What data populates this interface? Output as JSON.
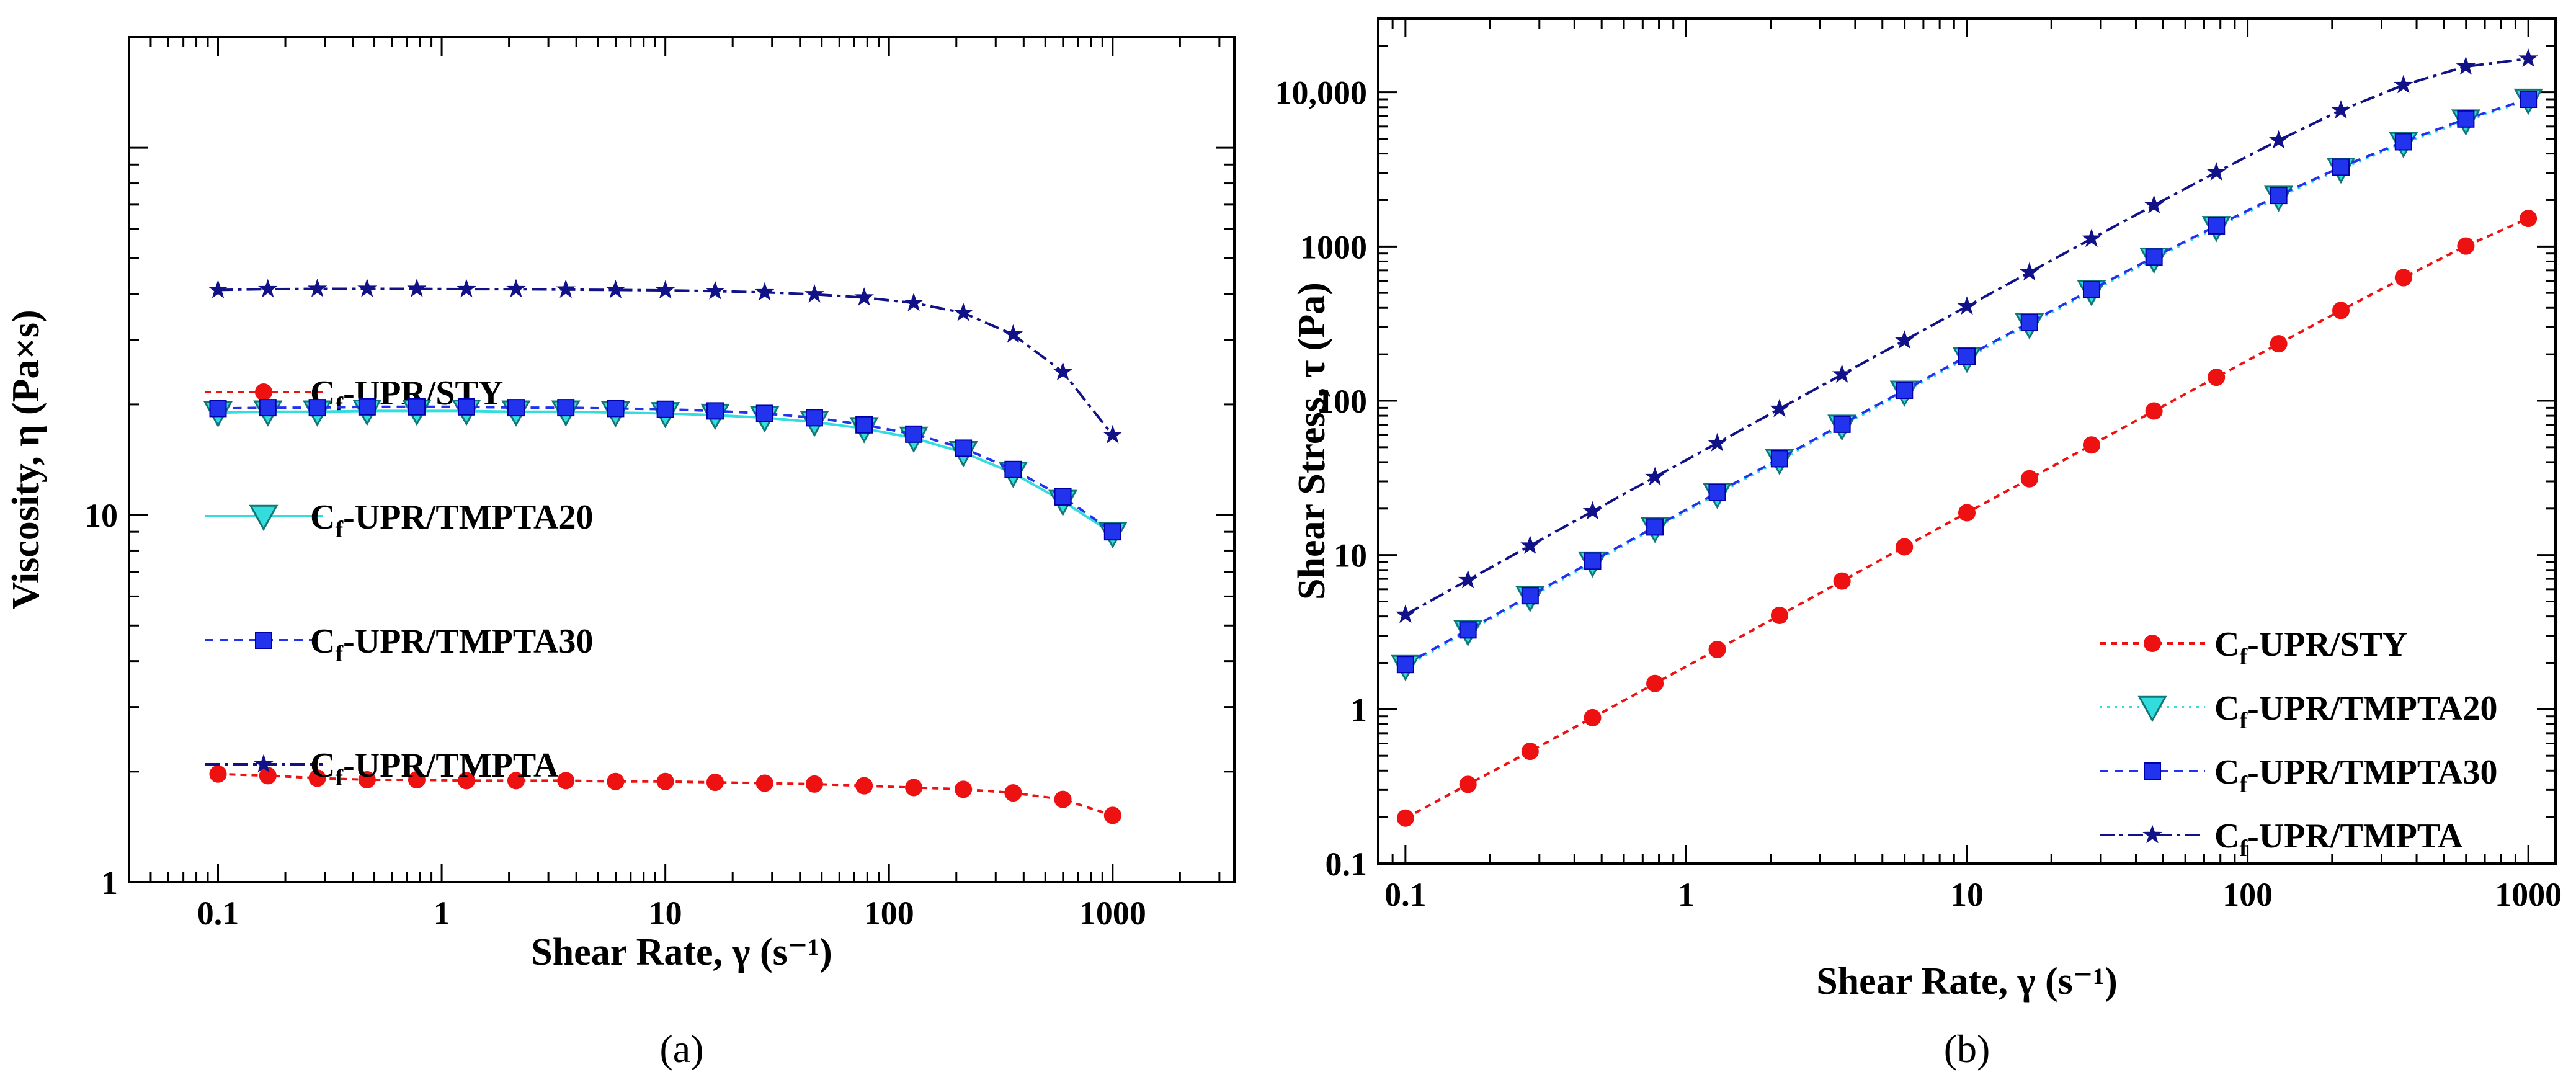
{
  "chart_data": [
    {
      "panel": "a",
      "panel_label": "(a)",
      "type": "line",
      "xscale": "log",
      "yscale": "log",
      "xlabel": "Shear Rate, γ (s⁻¹)",
      "ylabel": "Viscosity, η (Pa×s)",
      "xlim": [
        0.04,
        3500
      ],
      "ylim": [
        1,
        200
      ],
      "xticks": [
        0.1,
        1,
        10,
        100,
        1000
      ],
      "xtick_labels": [
        "0.1",
        "1",
        "10",
        "100",
        "1000"
      ],
      "yticks": [
        1,
        10
      ],
      "ytick_labels": [
        "1",
        "10"
      ],
      "legend_position": "center-left",
      "x": [
        0.1,
        0.167,
        0.278,
        0.464,
        0.774,
        1.29,
        2.15,
        3.59,
        5.99,
        10,
        16.7,
        27.8,
        46.4,
        77.4,
        129,
        215,
        359,
        599,
        1000
      ],
      "series": [
        {
          "name": "C",
          "sub": "f",
          "suffix": "-UPR/STY",
          "color": "#ee1111",
          "marker": "circle",
          "dash": "10,8",
          "values": [
            1.97,
            1.95,
            1.92,
            1.9,
            1.9,
            1.89,
            1.89,
            1.89,
            1.88,
            1.88,
            1.87,
            1.86,
            1.85,
            1.83,
            1.81,
            1.79,
            1.75,
            1.68,
            1.52
          ]
        },
        {
          "name": "C",
          "sub": "f",
          "suffix": "-UPR/TMPTA20",
          "color": "#33dddd",
          "marker": "triangle-down",
          "dash": "none",
          "values": [
            19.0,
            19.1,
            19.1,
            19.2,
            19.2,
            19.2,
            19.1,
            19.1,
            19.0,
            18.9,
            18.7,
            18.4,
            17.9,
            17.2,
            16.2,
            14.8,
            13.0,
            10.9,
            8.9
          ]
        },
        {
          "name": "C",
          "sub": "f",
          "suffix": "-UPR/TMPTA30",
          "color": "#2233ee",
          "marker": "square",
          "dash": "14,10",
          "values": [
            19.5,
            19.6,
            19.6,
            19.7,
            19.7,
            19.7,
            19.6,
            19.6,
            19.5,
            19.4,
            19.2,
            18.9,
            18.4,
            17.6,
            16.6,
            15.2,
            13.3,
            11.2,
            9.0
          ]
        },
        {
          "name": "C",
          "sub": "f",
          "suffix": "-UPR/TMPTA",
          "color": "#111188",
          "marker": "star",
          "dash": "24,8,6,8",
          "values": [
            41.0,
            41.2,
            41.3,
            41.3,
            41.3,
            41.2,
            41.2,
            41.1,
            41.0,
            40.9,
            40.7,
            40.4,
            39.9,
            39.1,
            37.8,
            35.5,
            31.0,
            24.5,
            16.5
          ]
        }
      ]
    },
    {
      "panel": "b",
      "panel_label": "(b)",
      "type": "line",
      "xscale": "log",
      "yscale": "log",
      "xlabel": "Shear Rate, γ (s⁻¹)",
      "ylabel": "Shear Stress, τ (Pa)",
      "xlim": [
        0.08,
        1250
      ],
      "ylim": [
        0.1,
        30000
      ],
      "xticks": [
        0.1,
        1,
        10,
        100,
        1000
      ],
      "xtick_labels": [
        "0.1",
        "1",
        "10",
        "100",
        "1000"
      ],
      "yticks": [
        0.1,
        1,
        10,
        100,
        1000,
        10000
      ],
      "ytick_labels": [
        "0.1",
        "1",
        "10",
        "100",
        "1000",
        "10,000"
      ],
      "legend_position": "bottom-right",
      "x": [
        0.1,
        0.167,
        0.278,
        0.464,
        0.774,
        1.29,
        2.15,
        3.59,
        5.99,
        10,
        16.7,
        27.8,
        46.4,
        77.4,
        129,
        215,
        359,
        599,
        1000
      ],
      "series": [
        {
          "name": "C",
          "sub": "f",
          "suffix": "-UPR/STY",
          "color": "#ee1111",
          "marker": "circle",
          "dash": "10,8",
          "values": [
            0.197,
            0.326,
            0.534,
            0.882,
            1.47,
            2.44,
            4.06,
            6.78,
            11.3,
            18.8,
            31.2,
            51.7,
            85.8,
            142,
            234,
            385,
            628,
            1006,
            1520
          ]
        },
        {
          "name": "C",
          "sub": "f",
          "suffix": "-UPR/TMPTA20",
          "color": "#33dddd",
          "marker": "triangle-down",
          "dash": "4,8",
          "values": [
            1.9,
            3.19,
            5.31,
            8.91,
            14.9,
            24.8,
            41.1,
            68.6,
            114,
            189,
            312,
            512,
            831,
            1331,
            2090,
            3182,
            4667,
            6529,
            8900
          ]
        },
        {
          "name": "C",
          "sub": "f",
          "suffix": "-UPR/TMPTA30",
          "color": "#2233ee",
          "marker": "square",
          "dash": "14,10",
          "values": [
            1.95,
            3.27,
            5.45,
            9.14,
            15.2,
            25.4,
            42.1,
            70.4,
            117,
            194,
            321,
            525,
            854,
            1362,
            2141,
            3268,
            4775,
            6709,
            9000
          ]
        },
        {
          "name": "C",
          "sub": "f",
          "suffix": "-UPR/TMPTA",
          "color": "#111188",
          "marker": "star",
          "dash": "24,8,6,8",
          "values": [
            4.1,
            6.88,
            11.5,
            19.2,
            32.0,
            53.1,
            88.6,
            148,
            246,
            409,
            680,
            1123,
            1851,
            3026,
            4876,
            7633,
            11129,
            14676,
            16500
          ]
        }
      ]
    }
  ]
}
